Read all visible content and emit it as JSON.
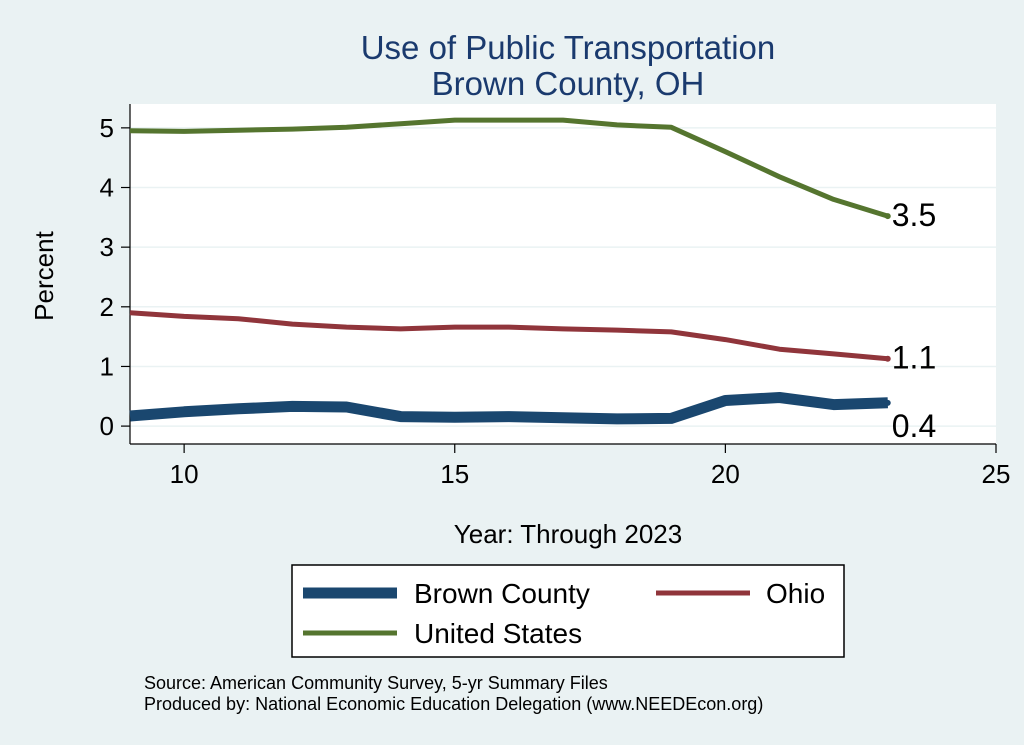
{
  "colors": {
    "background": "#eaf2f3",
    "plot_background": "#ffffff",
    "grid": "#eaf2f3",
    "title": "#1a3a6e",
    "brown_county": "#1a476f",
    "ohio": "#90353b",
    "united_states": "#55752f"
  },
  "chart_data": {
    "type": "line",
    "title": [
      "Use of Public Transportation",
      "Brown County, OH"
    ],
    "xlabel": "Year: Through 2023",
    "ylabel": "Percent",
    "xlim": [
      9,
      25
    ],
    "ylim": [
      -0.3,
      5.4
    ],
    "xticks": [
      10,
      15,
      20,
      25
    ],
    "yticks": [
      0,
      1,
      2,
      3,
      4,
      5
    ],
    "grid": true,
    "legend_position": "bottom",
    "x": [
      9,
      10,
      11,
      12,
      13,
      14,
      15,
      16,
      17,
      18,
      19,
      20,
      21,
      22,
      23
    ],
    "series": [
      {
        "name": "Brown County",
        "color": "#1a476f",
        "values": [
          0.17,
          0.24,
          0.29,
          0.33,
          0.32,
          0.16,
          0.15,
          0.16,
          0.14,
          0.12,
          0.13,
          0.43,
          0.48,
          0.36,
          0.39
        ],
        "end_label": "0.4"
      },
      {
        "name": "Ohio",
        "color": "#90353b",
        "values": [
          1.9,
          1.84,
          1.8,
          1.71,
          1.66,
          1.63,
          1.66,
          1.66,
          1.63,
          1.61,
          1.58,
          1.45,
          1.29,
          1.21,
          1.13
        ],
        "end_label": "1.1"
      },
      {
        "name": "United States",
        "color": "#55752f",
        "values": [
          4.95,
          4.94,
          4.96,
          4.98,
          5.01,
          5.07,
          5.13,
          5.13,
          5.13,
          5.05,
          5.01,
          4.6,
          4.18,
          3.8,
          3.52
        ],
        "end_label": "3.5"
      }
    ]
  },
  "notes": [
    "Source: American Community Survey, 5-yr Summary Files",
    "Produced by: National Economic Education Delegation (www.NEEDEcon.org)"
  ]
}
